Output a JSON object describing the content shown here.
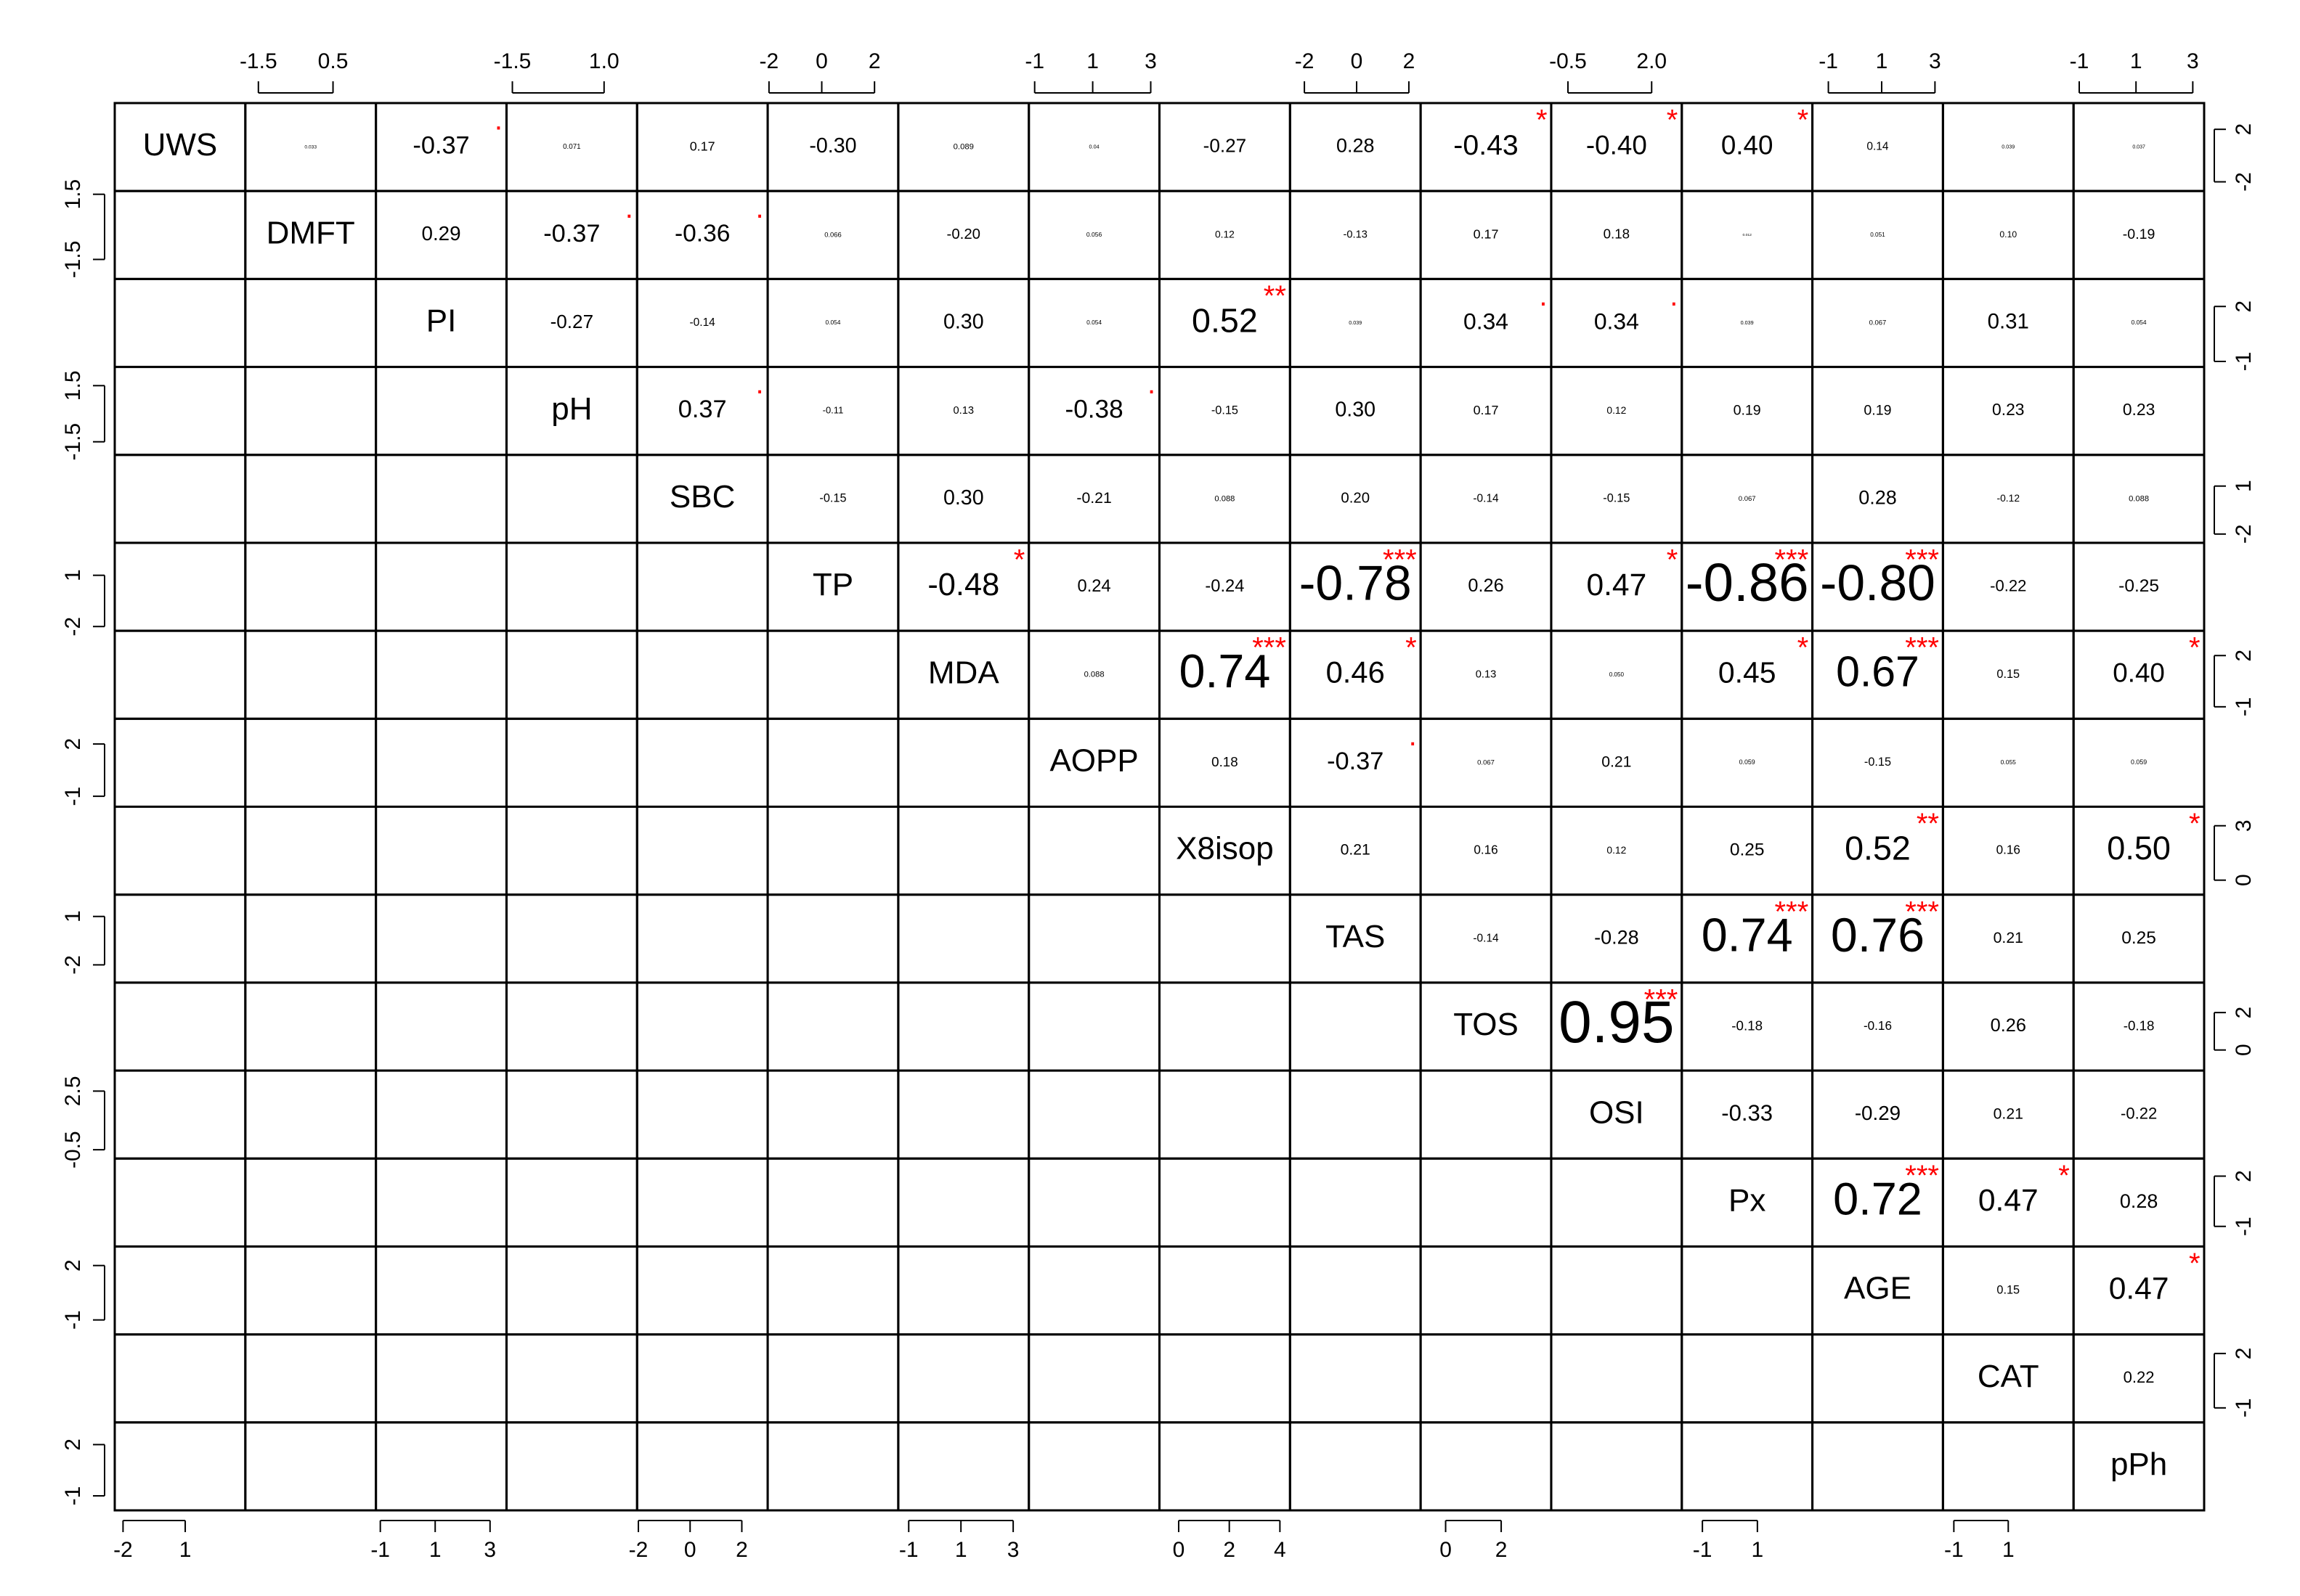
{
  "chart_data": {
    "type": "correlation-matrix",
    "variables": [
      {
        "name": "UWS",
        "xlim": [
          -2.4,
          3.9
        ],
        "xticks": [
          -2,
          1
        ],
        "ylim": [
          -2.7,
          4.0
        ],
        "yticks": [
          -2,
          2
        ]
      },
      {
        "name": "DMFT",
        "xlim": [
          -1.85,
          1.65
        ],
        "xticks": [
          -1.5,
          0.5
        ],
        "ylim": [
          -2.4,
          1.65
        ],
        "yticks": [
          -1.5,
          1.5
        ]
      },
      {
        "name": "PI",
        "xlim": [
          -1.16,
          3.6
        ],
        "xticks": [
          -1,
          1,
          3
        ],
        "ylim": [
          -1.3,
          3.5
        ],
        "yticks": [
          -1,
          2
        ]
      },
      {
        "name": "pH",
        "xlim": [
          -1.66,
          1.9
        ],
        "xticks": [
          -1.5,
          {
            "value": 1,
            "label": "1.0"
          }
        ],
        "ylim": [
          -2.2,
          2.5
        ],
        "yticks": [
          -1.5,
          1.5
        ]
      },
      {
        "name": "SBC",
        "xlim": [
          -2.05,
          3.0
        ],
        "xticks": [
          -2,
          0,
          2
        ],
        "ylim": [
          -2.55,
          2.95
        ],
        "yticks": [
          -2,
          1
        ]
      },
      {
        "name": "TP",
        "xlim": [
          -2.05,
          2.9
        ],
        "xticks": [
          -2,
          0,
          2
        ],
        "ylim": [
          -2.25,
          2.9
        ],
        "yticks": [
          -2,
          1
        ]
      },
      {
        "name": "MDA",
        "xlim": [
          -1.4,
          3.6
        ],
        "xticks": [
          -1,
          1,
          3
        ],
        "ylim": [
          -1.7,
          3.45
        ],
        "yticks": [
          -1,
          2
        ]
      },
      {
        "name": "AOPP",
        "xlim": [
          -1.2,
          3.3
        ],
        "xticks": [
          -1,
          1,
          3
        ],
        "ylim": [
          -1.6,
          3.45
        ],
        "yticks": [
          -1,
          2
        ]
      },
      {
        "name": "X8isop",
        "xlim": [
          -0.76,
          4.4
        ],
        "xticks": [
          0,
          2,
          4
        ],
        "ylim": [
          -0.8,
          4.05
        ],
        "yticks": [
          0,
          3
        ]
      },
      {
        "name": "TAS",
        "xlim": [
          -2.55,
          2.45
        ],
        "xticks": [
          -2,
          0,
          2
        ],
        "ylim": [
          -3.1,
          2.35
        ],
        "yticks": [
          -2,
          1
        ]
      },
      {
        "name": "TOS",
        "xlim": [
          -0.9,
          3.8
        ],
        "xticks": [
          0,
          2
        ],
        "ylim": [
          -1.1,
          3.6
        ],
        "yticks": [
          0,
          2
        ]
      },
      {
        "name": "OSI",
        "xlim": [
          -1.0,
          2.9
        ],
        "xticks": [
          -0.5,
          {
            "value": 2,
            "label": "2.0"
          }
        ],
        "ylim": [
          -0.95,
          3.55
        ],
        "yticks": [
          -0.5,
          2.5
        ]
      },
      {
        "name": "Px",
        "xlim": [
          -1.75,
          3.0
        ],
        "xticks": [
          -1,
          1
        ],
        "ylim": [
          -2.2,
          3.05
        ],
        "yticks": [
          -1,
          2
        ]
      },
      {
        "name": "AGE",
        "xlim": [
          -1.6,
          3.3
        ],
        "xticks": [
          -1,
          1,
          3
        ],
        "ylim": [
          -1.8,
          3.05
        ],
        "yticks": [
          -1,
          2
        ]
      },
      {
        "name": "CAT",
        "xlim": [
          -1.4,
          3.4
        ],
        "xticks": [
          -1,
          1
        ],
        "ylim": [
          -1.8,
          3.05
        ],
        "yticks": [
          -1,
          2
        ]
      },
      {
        "name": "pPh",
        "xlim": [
          -1.2,
          3.4
        ],
        "xticks": [
          -1,
          1,
          3
        ],
        "ylim": [
          -1.85,
          3.3
        ],
        "yticks": [
          -1,
          2
        ]
      }
    ],
    "correlations": [
      [
        0.033,
        -0.37,
        0.071,
        0.17,
        -0.3,
        0.089,
        0.04,
        -0.27,
        0.28,
        -0.43,
        -0.4,
        0.4,
        0.14,
        0.039,
        0.037
      ],
      [
        0.29,
        -0.37,
        -0.36,
        0.066,
        -0.2,
        0.056,
        0.12,
        -0.13,
        0.17,
        0.18,
        0.012,
        0.051,
        0.1,
        -0.19
      ],
      [
        -0.27,
        -0.14,
        0.054,
        0.3,
        0.054,
        0.52,
        0.039,
        0.34,
        0.34,
        0.039,
        0.067,
        0.31,
        0.054
      ],
      [
        0.37,
        -0.11,
        0.13,
        -0.38,
        -0.15,
        0.3,
        0.17,
        0.12,
        0.19,
        0.19,
        0.23,
        0.23
      ],
      [
        -0.15,
        0.3,
        -0.21,
        0.088,
        0.2,
        -0.14,
        -0.15,
        0.067,
        0.28,
        -0.12,
        0.088
      ],
      [
        -0.48,
        0.24,
        -0.24,
        -0.78,
        0.26,
        0.47,
        -0.86,
        -0.8,
        -0.22,
        -0.25
      ],
      [
        0.088,
        0.74,
        0.46,
        0.13,
        0.05,
        0.45,
        0.67,
        0.15,
        0.4
      ],
      [
        0.18,
        -0.37,
        0.067,
        0.21,
        0.059,
        -0.15,
        0.055,
        0.059
      ],
      [
        0.21,
        0.16,
        0.12,
        0.25,
        0.52,
        0.16,
        0.5
      ],
      [
        -0.14,
        -0.28,
        0.74,
        0.76,
        0.21,
        0.25
      ],
      [
        0.95,
        -0.18,
        -0.16,
        0.26,
        -0.18
      ],
      [
        -0.33,
        -0.29,
        0.21,
        -0.22
      ],
      [
        0.72,
        0.47,
        0.28
      ],
      [
        0.15,
        0.47
      ],
      [
        0.22
      ]
    ],
    "value_labels": [
      [
        "0.033",
        "-0.37",
        "0.071",
        "0.17",
        "-0.30",
        "0.089",
        "0.04",
        "-0.27",
        "0.28",
        "-0.43",
        "-0.40",
        "0.40",
        "0.14",
        "0.039",
        "0.037"
      ],
      [
        "0.29",
        "-0.37",
        "-0.36",
        "0.066",
        "-0.20",
        "0.056",
        "0.12",
        "-0.13",
        "0.17",
        "0.18",
        "0.012",
        "0.051",
        "0.10",
        "-0.19"
      ],
      [
        "-0.27",
        "-0.14",
        "0.054",
        "0.30",
        "0.054",
        "0.52",
        "0.039",
        "0.34",
        "0.34",
        "0.039",
        "0.067",
        "0.31",
        "0.054"
      ],
      [
        "0.37",
        "-0.11",
        "0.13",
        "-0.38",
        "-0.15",
        "0.30",
        "0.17",
        "0.12",
        "0.19",
        "0.19",
        "0.23",
        "0.23"
      ],
      [
        "-0.15",
        "0.30",
        "-0.21",
        "0.088",
        "0.20",
        "-0.14",
        "-0.15",
        "0.067",
        "0.28",
        "-0.12",
        "0.088"
      ],
      [
        "-0.48",
        "0.24",
        "-0.24",
        "-0.78",
        "0.26",
        "0.47",
        "-0.86",
        "-0.80",
        "-0.22",
        "-0.25"
      ],
      [
        "0.088",
        "0.74",
        "0.46",
        "0.13",
        "0.050",
        "0.45",
        "0.67",
        "0.15",
        "0.40"
      ],
      [
        "0.18",
        "-0.37",
        "0.067",
        "0.21",
        "0.059",
        "-0.15",
        "0.055",
        "0.059"
      ],
      [
        "0.21",
        "0.16",
        "0.12",
        "0.25",
        "0.52",
        "0.16",
        "0.50"
      ],
      [
        "-0.14",
        "-0.28",
        "0.74",
        "0.76",
        "0.21",
        "0.25"
      ],
      [
        "0.95",
        "-0.18",
        "-0.16",
        "0.26",
        "-0.18"
      ],
      [
        "-0.33",
        "-0.29",
        "0.21",
        "-0.22"
      ],
      [
        "0.72",
        "0.47",
        "0.28"
      ],
      [
        "0.15",
        "0.47"
      ],
      [
        "0.22"
      ]
    ],
    "significance": [
      [
        null,
        ".",
        null,
        null,
        null,
        null,
        null,
        null,
        null,
        "*",
        "*",
        "*",
        null,
        null,
        null
      ],
      [
        null,
        ".",
        ".",
        null,
        null,
        null,
        null,
        null,
        null,
        null,
        null,
        null,
        null,
        null
      ],
      [
        null,
        null,
        null,
        null,
        null,
        "**",
        null,
        ".",
        ".",
        null,
        null,
        null,
        null
      ],
      [
        ".",
        null,
        null,
        ".",
        null,
        null,
        null,
        null,
        null,
        null,
        null,
        null
      ],
      [
        null,
        null,
        null,
        null,
        null,
        null,
        null,
        null,
        null,
        null,
        null
      ],
      [
        "*",
        null,
        null,
        "***",
        null,
        "*",
        "***",
        "***",
        null,
        null
      ],
      [
        null,
        "***",
        "*",
        null,
        null,
        "*",
        "***",
        null,
        "*"
      ],
      [
        null,
        ".",
        null,
        null,
        null,
        null,
        null,
        null
      ],
      [
        null,
        null,
        null,
        null,
        "**",
        null,
        "*"
      ],
      [
        null,
        null,
        "***",
        "***",
        null,
        null
      ],
      [
        "***",
        null,
        null,
        null,
        null
      ],
      [
        null,
        null,
        null,
        null
      ],
      [
        "***",
        "*",
        null
      ],
      [
        null,
        "*"
      ],
      [
        null
      ]
    ]
  }
}
